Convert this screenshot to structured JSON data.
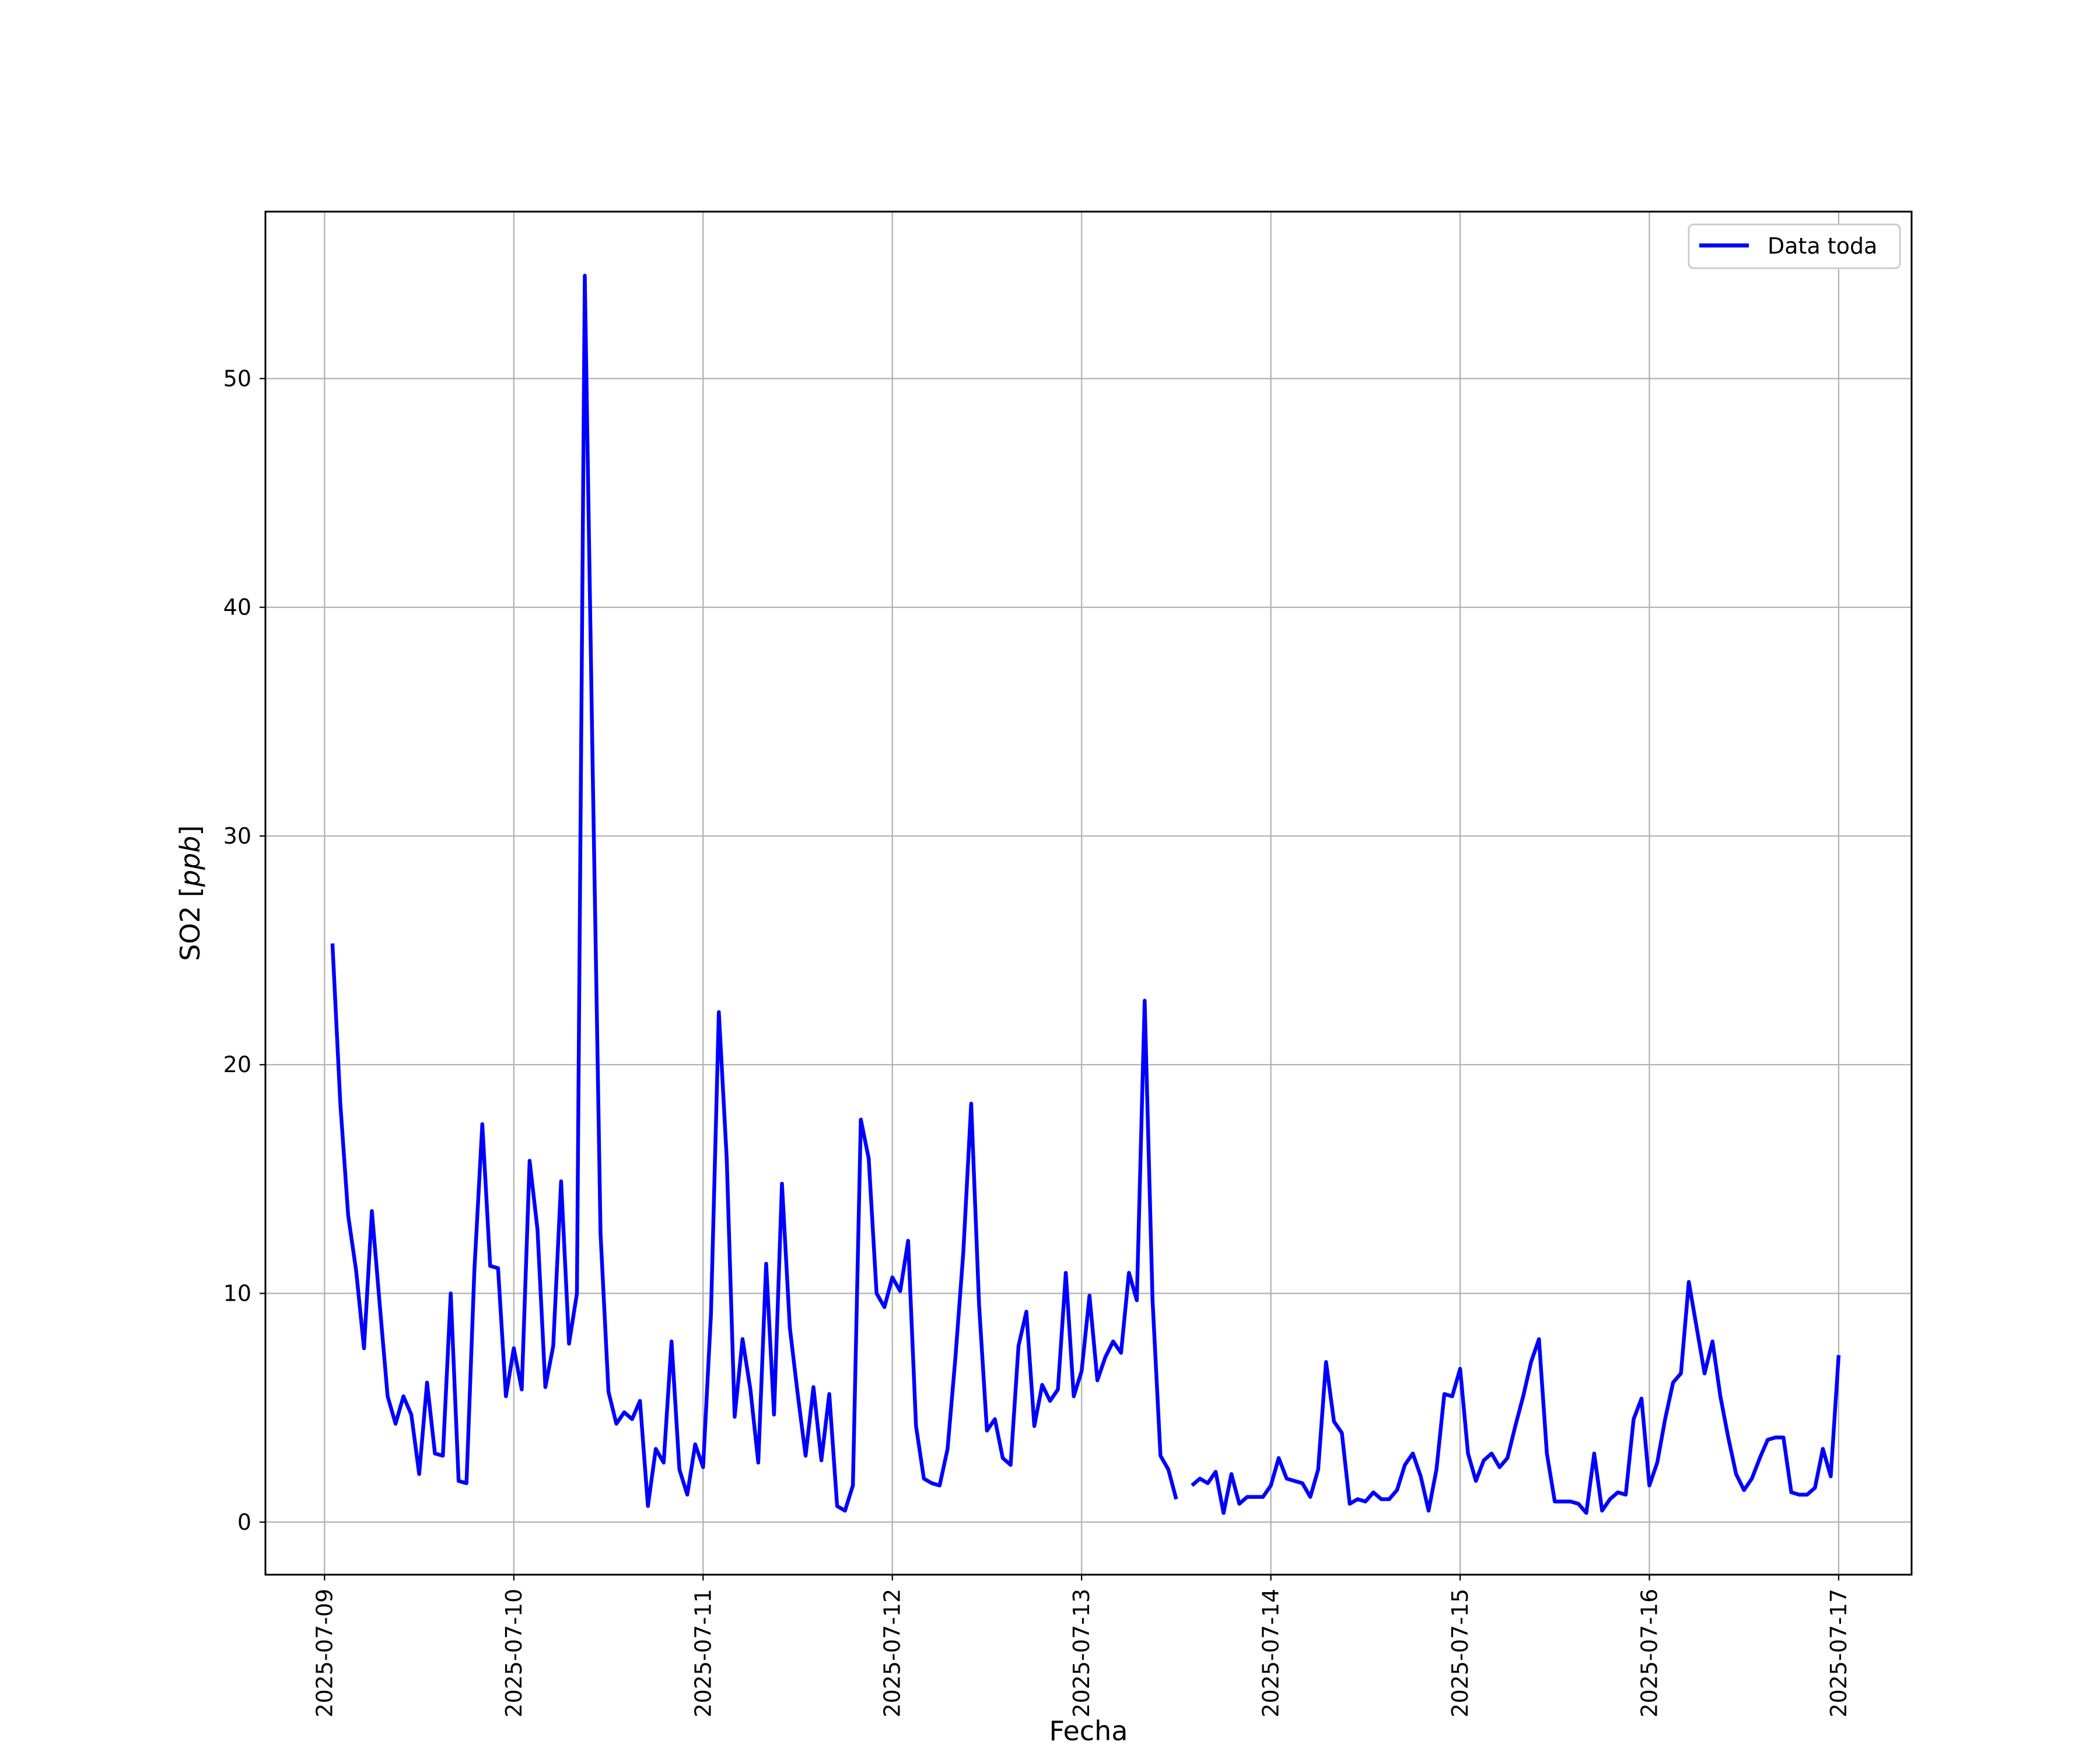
{
  "chart_data": {
    "type": "line",
    "xlabel": "Fecha",
    "ylabel_main": "SO2 [",
    "ylabel_unit": "ppb",
    "ylabel_close": "]",
    "ylim": [
      -2.3,
      57.3
    ],
    "xlim": [
      "2025-07-08 16:30",
      "2025-07-17 09:15"
    ],
    "grid": true,
    "legend_position": "top-right",
    "y_ticks": [
      0,
      10,
      20,
      30,
      40,
      50
    ],
    "x_ticks": [
      "2025-07-09",
      "2025-07-10",
      "2025-07-11",
      "2025-07-12",
      "2025-07-13",
      "2025-07-14",
      "2025-07-15",
      "2025-07-16",
      "2025-07-17"
    ],
    "series": [
      {
        "name": "Data toda",
        "color": "#0000ff",
        "segments": [
          {
            "x": [
              "2025-07-09 01:00",
              "2025-07-09 02:00",
              "2025-07-09 03:00",
              "2025-07-09 04:00",
              "2025-07-09 05:00",
              "2025-07-09 06:00",
              "2025-07-09 07:00",
              "2025-07-09 08:00",
              "2025-07-09 09:00",
              "2025-07-09 10:00",
              "2025-07-09 11:00",
              "2025-07-09 12:00",
              "2025-07-09 13:00",
              "2025-07-09 14:00",
              "2025-07-09 15:00",
              "2025-07-09 16:00",
              "2025-07-09 17:00",
              "2025-07-09 18:00",
              "2025-07-09 19:00",
              "2025-07-09 20:00",
              "2025-07-09 21:00",
              "2025-07-09 22:00",
              "2025-07-09 23:00",
              "2025-07-10 00:00",
              "2025-07-10 01:00",
              "2025-07-10 02:00",
              "2025-07-10 03:00",
              "2025-07-10 04:00",
              "2025-07-10 05:00",
              "2025-07-10 06:00",
              "2025-07-10 07:00",
              "2025-07-10 08:00",
              "2025-07-10 09:00",
              "2025-07-10 10:00",
              "2025-07-10 11:00",
              "2025-07-10 12:00",
              "2025-07-10 13:00",
              "2025-07-10 14:00",
              "2025-07-10 15:00",
              "2025-07-10 16:00",
              "2025-07-10 17:00",
              "2025-07-10 18:00",
              "2025-07-10 19:00",
              "2025-07-10 20:00",
              "2025-07-10 21:00",
              "2025-07-10 22:00",
              "2025-07-10 23:00",
              "2025-07-11 00:00",
              "2025-07-11 01:00",
              "2025-07-11 02:00",
              "2025-07-11 03:00",
              "2025-07-11 04:00",
              "2025-07-11 05:00",
              "2025-07-11 06:00",
              "2025-07-11 07:00",
              "2025-07-11 08:00",
              "2025-07-11 09:00",
              "2025-07-11 10:00",
              "2025-07-11 11:00",
              "2025-07-11 12:00",
              "2025-07-11 13:00",
              "2025-07-11 14:00",
              "2025-07-11 15:00",
              "2025-07-11 16:00",
              "2025-07-11 17:00",
              "2025-07-11 18:00",
              "2025-07-11 19:00",
              "2025-07-11 20:00",
              "2025-07-11 21:00",
              "2025-07-11 22:00",
              "2025-07-11 23:00",
              "2025-07-12 00:00",
              "2025-07-12 01:00",
              "2025-07-12 02:00",
              "2025-07-12 03:00",
              "2025-07-12 04:00",
              "2025-07-12 05:00",
              "2025-07-12 06:00",
              "2025-07-12 07:00",
              "2025-07-12 08:00",
              "2025-07-12 09:00",
              "2025-07-12 10:00",
              "2025-07-12 11:00",
              "2025-07-12 12:00",
              "2025-07-12 13:00",
              "2025-07-12 14:00",
              "2025-07-12 15:00",
              "2025-07-12 16:00",
              "2025-07-12 17:00",
              "2025-07-12 18:00",
              "2025-07-12 19:00",
              "2025-07-12 20:00",
              "2025-07-12 21:00",
              "2025-07-12 22:00",
              "2025-07-12 23:00",
              "2025-07-13 00:00",
              "2025-07-13 01:00",
              "2025-07-13 02:00",
              "2025-07-13 03:00",
              "2025-07-13 04:00",
              "2025-07-13 05:00",
              "2025-07-13 06:00",
              "2025-07-13 07:00",
              "2025-07-13 08:00",
              "2025-07-13 09:00",
              "2025-07-13 10:00",
              "2025-07-13 11:00",
              "2025-07-13 12:00"
            ],
            "y": [
              25.3,
              18.3,
              13.4,
              11.0,
              7.6,
              13.6,
              9.5,
              5.5,
              4.3,
              5.5,
              4.7,
              2.1,
              6.1,
              3.0,
              2.9,
              10.0,
              1.8,
              1.7,
              11.0,
              17.4,
              11.2,
              11.1,
              5.5,
              7.6,
              5.8,
              15.8,
              12.8,
              5.9,
              7.7,
              14.9,
              7.8,
              10.0,
              54.5,
              33.0,
              12.6,
              5.7,
              4.3,
              4.8,
              4.5,
              5.3,
              0.7,
              3.2,
              2.6,
              7.9,
              2.3,
              1.2,
              3.4,
              2.4,
              9.1,
              22.3,
              15.9,
              4.6,
              8.0,
              5.8,
              2.6,
              11.3,
              4.7,
              14.8,
              8.5,
              5.6,
              2.9,
              5.9,
              2.7,
              5.6,
              0.7,
              0.5,
              1.6,
              17.6,
              15.9,
              10.0,
              9.4,
              10.7,
              10.1,
              12.3,
              4.2,
              1.9,
              1.7,
              1.6,
              3.2,
              7.2,
              11.8,
              18.3,
              9.5,
              4.0,
              4.5,
              2.8,
              2.5,
              7.7,
              9.2,
              4.2,
              6.0,
              5.3,
              5.8,
              10.9,
              5.5,
              6.6,
              9.9,
              6.2,
              7.2,
              7.9,
              7.4,
              10.9,
              9.7,
              22.8,
              9.7,
              2.9,
              2.3,
              1.0
            ]
          },
          {
            "x": [
              "2025-07-13 14:00",
              "2025-07-13 15:00",
              "2025-07-13 16:00",
              "2025-07-13 17:00",
              "2025-07-13 18:00",
              "2025-07-13 19:00",
              "2025-07-13 20:00",
              "2025-07-13 21:00",
              "2025-07-13 22:00",
              "2025-07-13 23:00",
              "2025-07-14 00:00",
              "2025-07-14 01:00",
              "2025-07-14 02:00",
              "2025-07-14 03:00",
              "2025-07-14 04:00",
              "2025-07-14 05:00",
              "2025-07-14 06:00",
              "2025-07-14 07:00",
              "2025-07-14 08:00",
              "2025-07-14 09:00",
              "2025-07-14 10:00",
              "2025-07-14 11:00",
              "2025-07-14 12:00",
              "2025-07-14 13:00",
              "2025-07-14 14:00",
              "2025-07-14 15:00",
              "2025-07-14 16:00",
              "2025-07-14 17:00",
              "2025-07-14 18:00",
              "2025-07-14 19:00",
              "2025-07-14 20:00",
              "2025-07-14 21:00",
              "2025-07-14 22:00",
              "2025-07-14 23:00",
              "2025-07-15 00:00",
              "2025-07-15 01:00",
              "2025-07-15 02:00",
              "2025-07-15 03:00",
              "2025-07-15 04:00",
              "2025-07-15 05:00",
              "2025-07-15 06:00",
              "2025-07-15 07:00",
              "2025-07-15 08:00",
              "2025-07-15 09:00",
              "2025-07-15 10:00",
              "2025-07-15 11:00",
              "2025-07-15 12:00",
              "2025-07-15 13:00",
              "2025-07-15 14:00",
              "2025-07-15 15:00",
              "2025-07-15 16:00",
              "2025-07-15 17:00",
              "2025-07-15 18:00",
              "2025-07-15 19:00",
              "2025-07-15 20:00",
              "2025-07-15 21:00",
              "2025-07-15 22:00",
              "2025-07-15 23:00",
              "2025-07-16 00:00",
              "2025-07-16 01:00",
              "2025-07-16 02:00",
              "2025-07-16 03:00",
              "2025-07-16 04:00",
              "2025-07-16 05:00",
              "2025-07-16 06:00",
              "2025-07-16 07:00",
              "2025-07-16 08:00",
              "2025-07-16 09:00",
              "2025-07-16 10:00",
              "2025-07-16 11:00",
              "2025-07-16 12:00",
              "2025-07-16 13:00",
              "2025-07-16 14:00",
              "2025-07-16 15:00",
              "2025-07-16 16:00",
              "2025-07-16 17:00",
              "2025-07-16 18:00",
              "2025-07-16 19:00",
              "2025-07-16 20:00",
              "2025-07-16 21:00",
              "2025-07-16 22:00",
              "2025-07-16 23:00",
              "2025-07-17 00:00"
            ],
            "y": [
              1.6,
              1.9,
              1.7,
              2.2,
              0.4,
              2.1,
              0.8,
              1.1,
              1.1,
              1.1,
              1.6,
              2.8,
              1.9,
              1.8,
              1.7,
              1.1,
              2.3,
              7.0,
              4.4,
              3.9,
              0.8,
              1.0,
              0.9,
              1.3,
              1.0,
              1.0,
              1.4,
              2.5,
              3.0,
              2.0,
              0.5,
              2.3,
              5.6,
              5.5,
              6.7,
              3.0,
              1.8,
              2.7,
              3.0,
              2.4,
              2.8,
              4.2,
              5.5,
              7.0,
              8.0,
              3.0,
              0.9,
              0.9,
              0.9,
              0.8,
              0.4,
              3.0,
              0.5,
              1.0,
              1.3,
              1.2,
              4.5,
              5.4,
              1.6,
              2.6,
              4.5,
              6.1,
              6.5,
              10.5,
              8.5,
              6.5,
              7.9,
              5.5,
              3.7,
              2.1,
              1.4,
              1.9,
              2.8,
              3.6,
              3.7,
              3.7,
              1.3,
              1.2,
              1.2,
              1.5,
              3.2,
              2.0,
              7.3
            ]
          }
        ]
      }
    ]
  }
}
